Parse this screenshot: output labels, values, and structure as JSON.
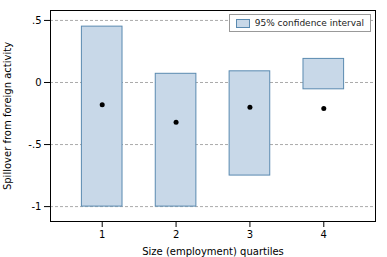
{
  "chart_data": {
    "type": "interval",
    "x": [
      1,
      2,
      3,
      4
    ],
    "series": [
      {
        "name": "95% confidence interval",
        "color": "#c8d8e8",
        "values": [
          -0.18,
          -0.32,
          -0.2,
          -0.21
        ],
        "ci_low": [
          -1.0,
          -1.0,
          -0.75,
          -0.055
        ],
        "ci_high": [
          0.45,
          0.07,
          0.09,
          0.19
        ]
      }
    ],
    "xlabel": "Size (employment) quartiles",
    "ylabel": "Spillover from foreign activity",
    "xlim": [
      0.3,
      4.7
    ],
    "xticks": [
      1,
      2,
      3,
      4
    ],
    "ylim": [
      -1.12,
      0.58
    ],
    "yticks": [
      -1,
      {
        "value": -0.5,
        "label": "-.5"
      },
      0,
      {
        "value": 0.5,
        "label": ".5"
      }
    ],
    "grid": true,
    "legend": "upper right"
  }
}
